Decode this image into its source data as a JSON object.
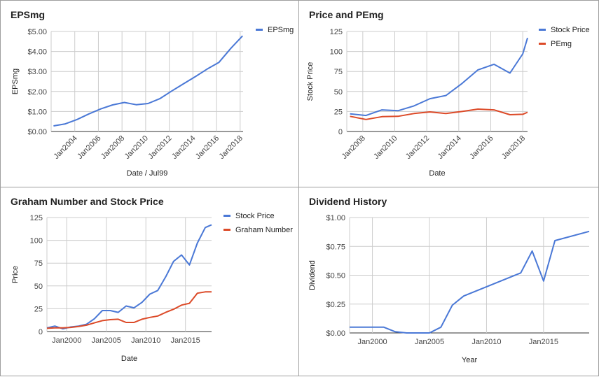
{
  "chart_data": [
    {
      "type": "line",
      "title": "EPSmg",
      "xlabel": "Date / Jul99",
      "ylabel": "EPSmg",
      "x_kind": "date",
      "xlim": [
        2002.0,
        2018.25
      ],
      "xticks": [
        2004,
        2006,
        2008,
        2010,
        2012,
        2014,
        2016,
        2018
      ],
      "xtick_labels": [
        "Jan2004",
        "Jan2006",
        "Jan2008",
        "Jan2010",
        "Jan2012",
        "Jan2014",
        "Jan2016",
        "Jan2018"
      ],
      "xtick_rotate": true,
      "ylim": [
        0,
        5
      ],
      "yticks": [
        0,
        1,
        2,
        3,
        4,
        5
      ],
      "ytick_labels": [
        "$0.00",
        "$1.00",
        "$2.00",
        "$3.00",
        "$4.00",
        "$5.00"
      ],
      "vgrid": [
        2002.0,
        2004,
        2006,
        2008,
        2010,
        2012,
        2014,
        2016,
        2018
      ],
      "legend": "right",
      "series": [
        {
          "name": "EPSmg",
          "color": "#4a78d6",
          "x": [
            2002.2,
            2003.2,
            2004.2,
            2005.2,
            2006.2,
            2007.2,
            2008.2,
            2009.2,
            2010.2,
            2011.2,
            2012.2,
            2013.2,
            2014.2,
            2015.2,
            2016.2,
            2017.2,
            2018.2
          ],
          "y": [
            0.28,
            0.38,
            0.6,
            0.88,
            1.13,
            1.33,
            1.45,
            1.34,
            1.4,
            1.64,
            2.02,
            2.38,
            2.74,
            3.12,
            3.45,
            4.15,
            4.78
          ]
        }
      ]
    },
    {
      "type": "line",
      "title": "Price and PEmg",
      "xlabel": "Date",
      "ylabel": "Stock Price",
      "x_kind": "date",
      "xlim": [
        2007.0,
        2018.3
      ],
      "xticks": [
        2008,
        2010,
        2012,
        2014,
        2016,
        2018
      ],
      "xtick_labels": [
        "Jan2008",
        "Jan2010",
        "Jan2012",
        "Jan2014",
        "Jan2016",
        "Jan2018"
      ],
      "xtick_rotate": true,
      "ylim": [
        0,
        125
      ],
      "yticks": [
        0,
        25,
        50,
        75,
        100,
        125
      ],
      "ytick_labels": [
        "0",
        "25",
        "50",
        "75",
        "100",
        "125"
      ],
      "vgrid": [
        2007.0,
        2008,
        2010,
        2012,
        2014,
        2016,
        2018
      ],
      "legend": "right",
      "series": [
        {
          "name": "Stock Price",
          "color": "#4a78d6",
          "x": [
            2007.2,
            2008.2,
            2009.2,
            2010.2,
            2011.2,
            2012.2,
            2013.2,
            2014.2,
            2015.2,
            2016.2,
            2017.2,
            2018.0,
            2018.3
          ],
          "y": [
            22,
            20,
            27,
            26,
            32,
            41,
            45,
            60,
            77,
            84,
            73,
            97,
            117
          ]
        },
        {
          "name": "PEmg",
          "color": "#dc4a28",
          "x": [
            2007.2,
            2008.2,
            2009.2,
            2010.2,
            2011.2,
            2012.2,
            2013.2,
            2014.2,
            2015.2,
            2016.2,
            2017.2,
            2018.0,
            2018.3
          ],
          "y": [
            19,
            15,
            18.5,
            19,
            22.5,
            24.5,
            22.5,
            25,
            28,
            27,
            21,
            21.5,
            24
          ]
        }
      ]
    },
    {
      "type": "line",
      "title": "Graham Number and Stock Price",
      "xlabel": "Date",
      "ylabel": "Price",
      "x_kind": "date",
      "xlim": [
        1997.5,
        2018.3
      ],
      "xticks": [
        2000,
        2005,
        2010,
        2015
      ],
      "xtick_labels": [
        "Jan2000",
        "Jan2005",
        "Jan2010",
        "Jan2015"
      ],
      "xtick_rotate": false,
      "ylim": [
        0,
        125
      ],
      "yticks": [
        0,
        25,
        50,
        75,
        100,
        125
      ],
      "ytick_labels": [
        "0",
        "25",
        "50",
        "75",
        "100",
        "125"
      ],
      "vgrid": [
        1997.5,
        2000,
        2005,
        2010,
        2015
      ],
      "legend": "right",
      "series": [
        {
          "name": "Stock Price",
          "color": "#4a78d6",
          "x": [
            1997.5,
            1998.5,
            1999.5,
            2000.5,
            2001.5,
            2002.5,
            2003.5,
            2004.5,
            2005.5,
            2006.5,
            2007.5,
            2008.5,
            2009.5,
            2010.5,
            2011.5,
            2012.5,
            2013.5,
            2014.5,
            2015.5,
            2016.5,
            2017.5,
            2018.3
          ],
          "y": [
            4,
            6,
            3,
            5,
            6,
            8,
            14,
            23,
            23,
            21,
            28,
            26,
            32,
            41,
            45,
            60,
            77,
            84,
            73,
            97,
            114,
            117
          ]
        },
        {
          "name": "Graham Number",
          "color": "#dc4a28",
          "x": [
            1997.5,
            1998.5,
            1999.5,
            2000.5,
            2001.5,
            2002.5,
            2003.5,
            2004.5,
            2005.5,
            2006.5,
            2007.5,
            2008.5,
            2009.5,
            2010.5,
            2011.5,
            2012.5,
            2013.5,
            2014.5,
            2015.5,
            2016.5,
            2017.5,
            2018.3
          ],
          "y": [
            3.5,
            4,
            4,
            4.5,
            5.5,
            7,
            9.5,
            12,
            13,
            13.5,
            10,
            10,
            13.5,
            15.5,
            17,
            21,
            24.5,
            29,
            31,
            42,
            43.5,
            43.5
          ]
        }
      ]
    },
    {
      "type": "line",
      "title": "Dividend History",
      "xlabel": "Year",
      "ylabel": "Dividend",
      "x_kind": "date",
      "xlim": [
        1998.0,
        2019.0
      ],
      "xticks": [
        2000,
        2005,
        2010,
        2015
      ],
      "xtick_labels": [
        "Jan2000",
        "Jan2005",
        "Jan2010",
        "Jan2015"
      ],
      "xtick_rotate": false,
      "ylim": [
        0,
        1
      ],
      "yticks": [
        0,
        0.25,
        0.5,
        0.75,
        1
      ],
      "ytick_labels": [
        "$0.00",
        "$0.25",
        "$0.50",
        "$0.75",
        "$1.00"
      ],
      "vgrid": [
        1998.0,
        2000,
        2005,
        2010,
        2015
      ],
      "legend": "none",
      "series": [
        {
          "name": "",
          "color": "#4a78d6",
          "x": [
            1998.0,
            2000.0,
            2001.0,
            2002.0,
            2003.0,
            2004.0,
            2005.0,
            2006.0,
            2007.0,
            2008.0,
            2013.0,
            2014.0,
            2015.0,
            2016.0,
            2019.0
          ],
          "y": [
            0.05,
            0.05,
            0.05,
            0.01,
            0,
            0,
            0,
            0.05,
            0.24,
            0.32,
            0.52,
            0.71,
            0.45,
            0.8,
            0.88
          ]
        }
      ]
    }
  ]
}
